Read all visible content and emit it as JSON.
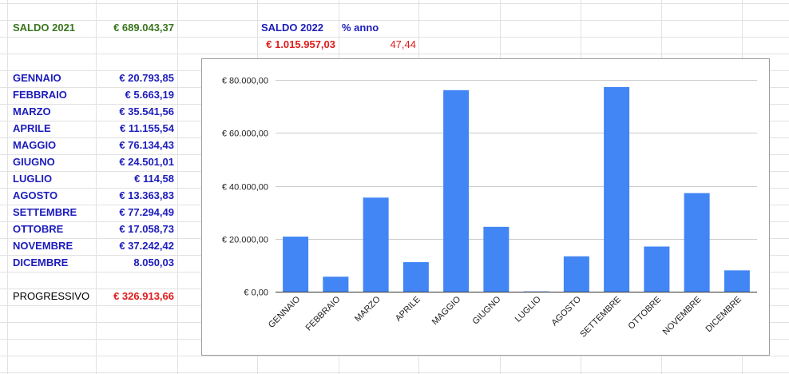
{
  "sheet": {
    "saldo2021_label": "SALDO 2021",
    "saldo2021_value": "€ 689.043,37",
    "saldo2022_label": "SALDO 2022",
    "saldo2022_value": "€ 1.015.957,03",
    "anno_label": "% anno",
    "anno_value": "47,44",
    "months": [
      {
        "label": "GENNAIO",
        "value": "€ 20.793,85"
      },
      {
        "label": "FEBBRAIO",
        "value": "€ 5.663,19"
      },
      {
        "label": "MARZO",
        "value": "€ 35.541,56"
      },
      {
        "label": "APRILE",
        "value": "€ 11.155,54"
      },
      {
        "label": "MAGGIO",
        "value": "€ 76.134,43"
      },
      {
        "label": "GIUGNO",
        "value": "€ 24.501,01"
      },
      {
        "label": "LUGLIO",
        "value": "€ 114,58"
      },
      {
        "label": "AGOSTO",
        "value": "€ 13.363,83"
      },
      {
        "label": "SETTEMBRE",
        "value": "€ 77.294,49"
      },
      {
        "label": "OTTOBRE",
        "value": "€ 17.058,73"
      },
      {
        "label": "NOVEMBRE",
        "value": "€ 37.242,42"
      },
      {
        "label": "DICEMBRE",
        "value": "8.050,03"
      }
    ],
    "progressivo_label": "PROGRESSIVO",
    "progressivo_value": "€ 326.913,66"
  },
  "chart_data": {
    "type": "bar",
    "categories": [
      "GENNAIO",
      "FEBBRAIO",
      "MARZO",
      "APRILE",
      "MAGGIO",
      "GIUGNO",
      "LUGLIO",
      "AGOSTO",
      "SETTEMBRE",
      "OTTOBRE",
      "NOVEMBRE",
      "DICEMBRE"
    ],
    "values": [
      20793.85,
      5663.19,
      35541.56,
      11155.54,
      76134.43,
      24501.01,
      114.58,
      13363.83,
      77294.49,
      17058.73,
      37242.42,
      8050.03
    ],
    "yticks": [
      "€ 0,00",
      "€ 20.000,00",
      "€ 40.000,00",
      "€ 60.000,00",
      "€ 80.000,00"
    ],
    "ylim": [
      0,
      80000
    ],
    "bar_color": "#4285f4",
    "grid": true,
    "title": "",
    "xlabel": "",
    "ylabel": ""
  }
}
